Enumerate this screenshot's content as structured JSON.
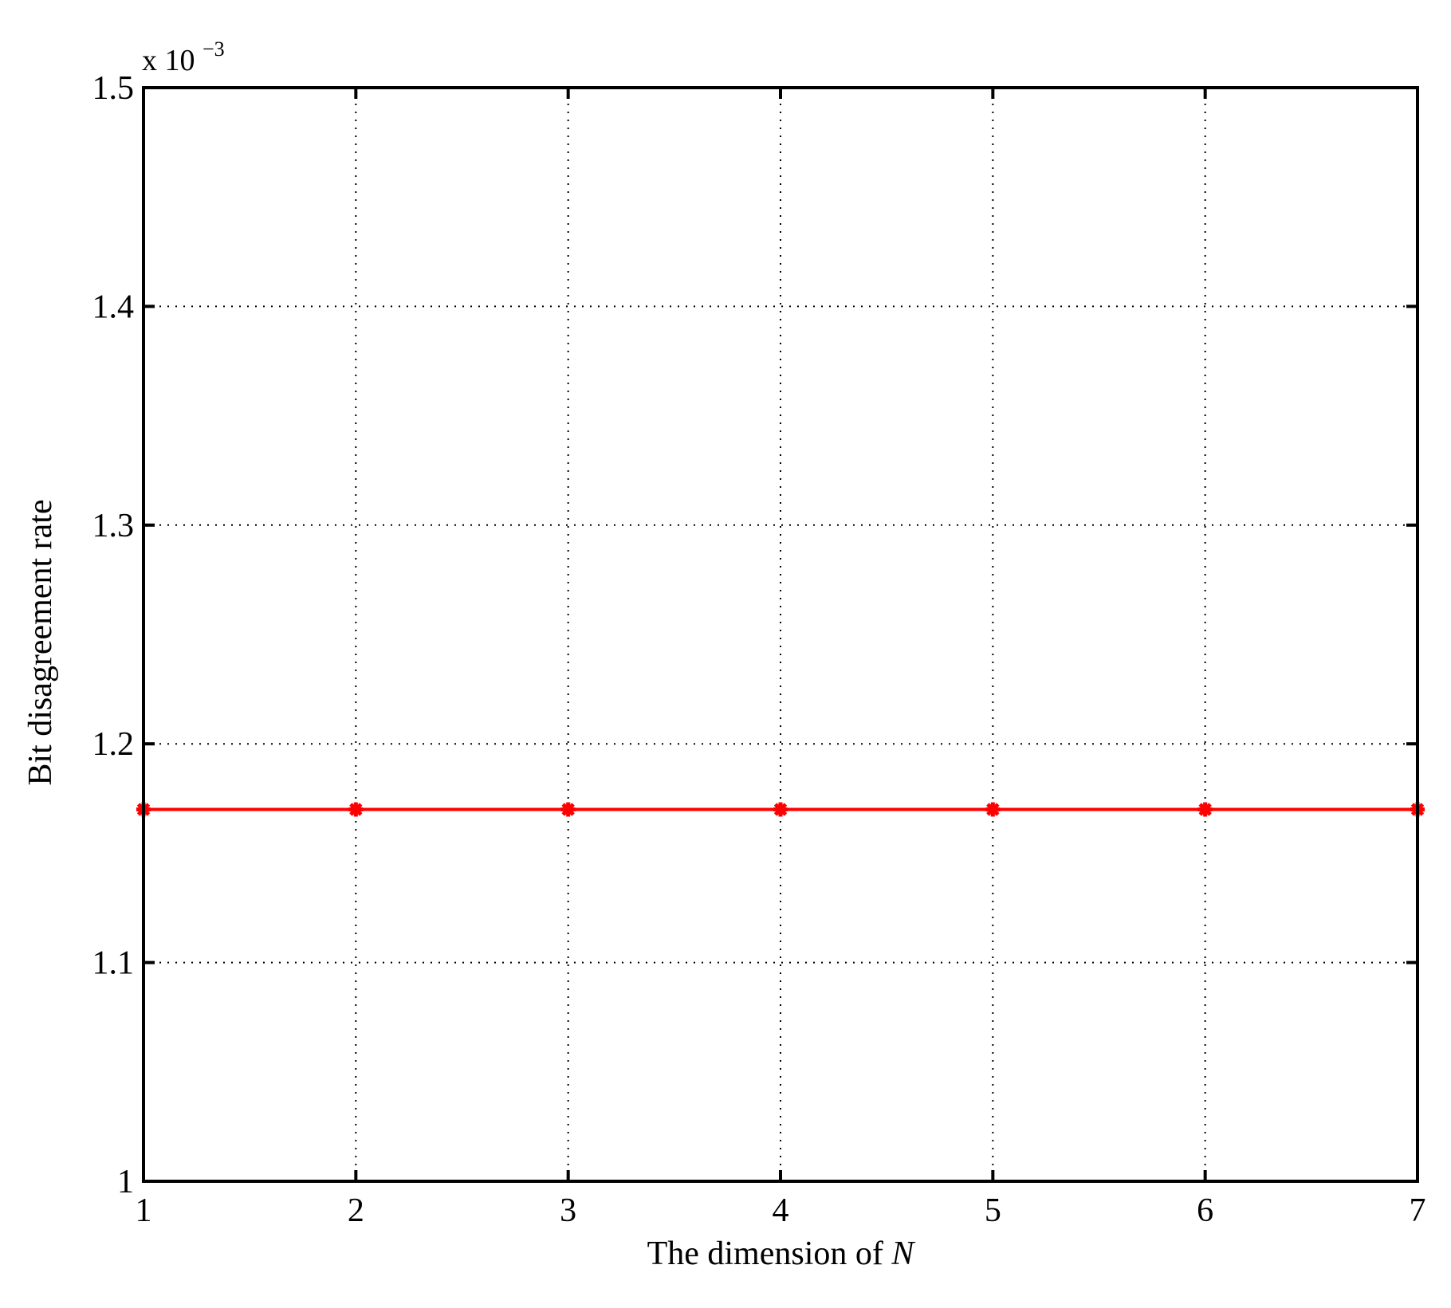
{
  "chart_data": {
    "type": "line",
    "title": "",
    "xlabel_prefix": "The dimension of ",
    "xlabel_var": "N",
    "ylabel": "Bit disagreement rate",
    "y_scale_base": "x 10",
    "y_scale_exp": "−3",
    "xlim": [
      1,
      7
    ],
    "ylim": [
      1.0,
      1.5
    ],
    "xticks": [
      1,
      2,
      3,
      4,
      5,
      6,
      7
    ],
    "xtick_labels": [
      "1",
      "2",
      "3",
      "4",
      "5",
      "6",
      "7"
    ],
    "yticks": [
      1.0,
      1.1,
      1.2,
      1.3,
      1.4,
      1.5
    ],
    "ytick_labels": [
      "1",
      "1.1",
      "1.2",
      "1.3",
      "1.4",
      "1.5"
    ],
    "grid": true,
    "legend": "none",
    "series": [
      {
        "color": "#ff0000",
        "marker": "star",
        "x": [
          1,
          2,
          3,
          4,
          5,
          6,
          7
        ],
        "y": [
          1.17,
          1.17,
          1.17,
          1.17,
          1.17,
          1.17,
          1.17
        ]
      }
    ]
  }
}
